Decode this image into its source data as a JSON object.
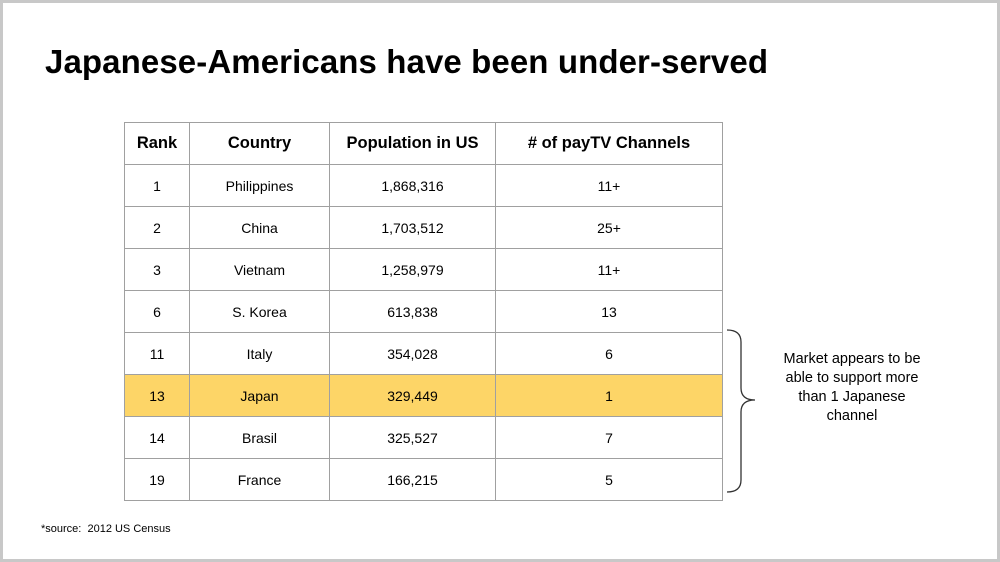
{
  "title": "Japanese-Americans have been under-served",
  "table": {
    "headers": [
      "Rank",
      "Country",
      "Population in US",
      "# of payTV Channels"
    ],
    "rows": [
      {
        "rank": "1",
        "country": "Philippines",
        "population": "1,868,316",
        "channels": "11+",
        "highlight": false
      },
      {
        "rank": "2",
        "country": "China",
        "population": "1,703,512",
        "channels": "25+",
        "highlight": false
      },
      {
        "rank": "3",
        "country": "Vietnam",
        "population": "1,258,979",
        "channels": "11+",
        "highlight": false
      },
      {
        "rank": "6",
        "country": "S. Korea",
        "population": "613,838",
        "channels": "13",
        "highlight": false
      },
      {
        "rank": "11",
        "country": "Italy",
        "population": "354,028",
        "channels": "6",
        "highlight": false
      },
      {
        "rank": "13",
        "country": "Japan",
        "population": "329,449",
        "channels": "1",
        "highlight": true
      },
      {
        "rank": "14",
        "country": "Brasil",
        "population": "325,527",
        "channels": "7",
        "highlight": false
      },
      {
        "rank": "19",
        "country": "France",
        "population": "166,215",
        "channels": "5",
        "highlight": false
      }
    ]
  },
  "annotation": "Market appears to be able to support more than 1 Japanese channel",
  "source": "*source:  2012 US Census",
  "colors": {
    "highlight_row": "#fdd567",
    "border": "#a0a0a0",
    "slide_frame": "#c8c8c8"
  }
}
